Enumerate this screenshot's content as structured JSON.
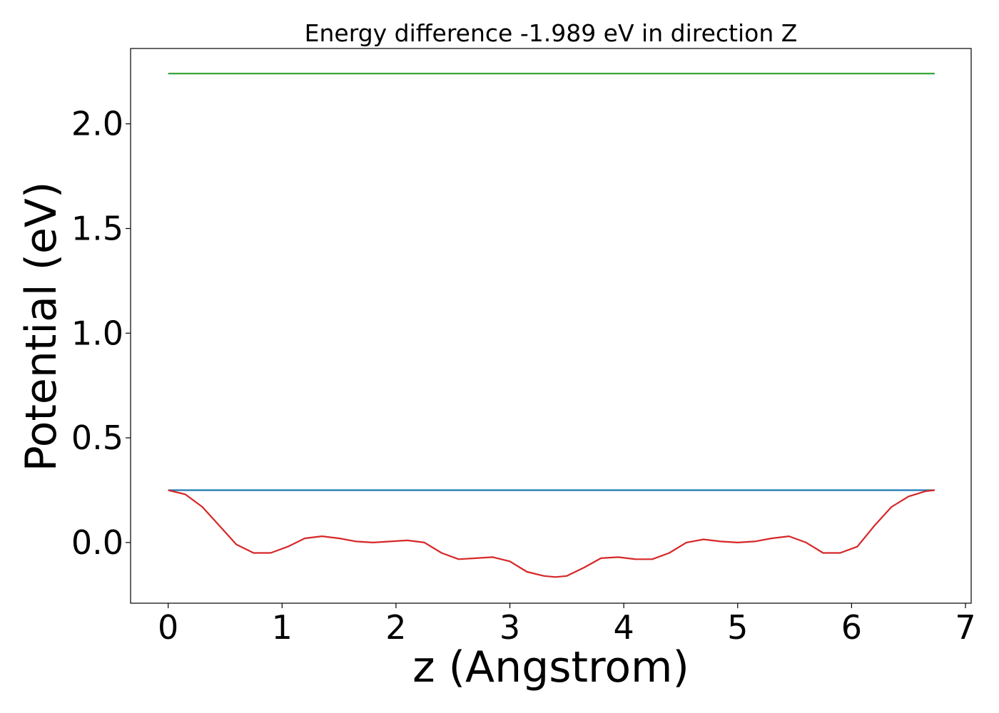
{
  "chart_data": {
    "type": "line",
    "title": "Energy difference -1.989 eV in direction Z",
    "xlabel": "z (Angstrom)",
    "ylabel": "Potential (eV)",
    "xlim": [
      -0.33,
      7.05
    ],
    "ylim": [
      -0.29,
      2.36
    ],
    "xticks": [
      0,
      1,
      2,
      3,
      4,
      5,
      6,
      7
    ],
    "xtick_labels": [
      "0",
      "1",
      "2",
      "3",
      "4",
      "5",
      "6",
      "7"
    ],
    "yticks": [
      0.0,
      0.5,
      1.0,
      1.5,
      2.0
    ],
    "ytick_labels": [
      "0.0",
      "0.5",
      "1.0",
      "1.5",
      "2.0"
    ],
    "grid": false,
    "legend": "none",
    "series": [
      {
        "color": "#2ca02c",
        "x": [
          0,
          6.73
        ],
        "y": [
          2.24,
          2.24
        ]
      },
      {
        "color": "#1f77b4",
        "x": [
          0,
          6.73
        ],
        "y": [
          0.25,
          0.25
        ]
      },
      {
        "color": "#d62728",
        "x": [
          0.0,
          0.15,
          0.3,
          0.45,
          0.6,
          0.75,
          0.9,
          1.05,
          1.2,
          1.35,
          1.5,
          1.65,
          1.8,
          1.95,
          2.1,
          2.25,
          2.4,
          2.55,
          2.7,
          2.85,
          3.0,
          3.15,
          3.3,
          3.4,
          3.5,
          3.65,
          3.8,
          3.95,
          4.1,
          4.25,
          4.4,
          4.55,
          4.7,
          4.85,
          5.0,
          5.15,
          5.3,
          5.45,
          5.6,
          5.75,
          5.9,
          6.05,
          6.2,
          6.35,
          6.5,
          6.65,
          6.73
        ],
        "y": [
          0.25,
          0.23,
          0.17,
          0.08,
          -0.01,
          -0.05,
          -0.05,
          -0.02,
          0.02,
          0.03,
          0.02,
          0.005,
          0.0,
          0.005,
          0.01,
          0.0,
          -0.05,
          -0.08,
          -0.075,
          -0.07,
          -0.09,
          -0.14,
          -0.16,
          -0.165,
          -0.16,
          -0.12,
          -0.075,
          -0.07,
          -0.08,
          -0.08,
          -0.05,
          0.0,
          0.015,
          0.005,
          0.0,
          0.005,
          0.02,
          0.03,
          0.0,
          -0.05,
          -0.05,
          -0.02,
          0.08,
          0.17,
          0.22,
          0.245,
          0.25
        ]
      }
    ]
  }
}
